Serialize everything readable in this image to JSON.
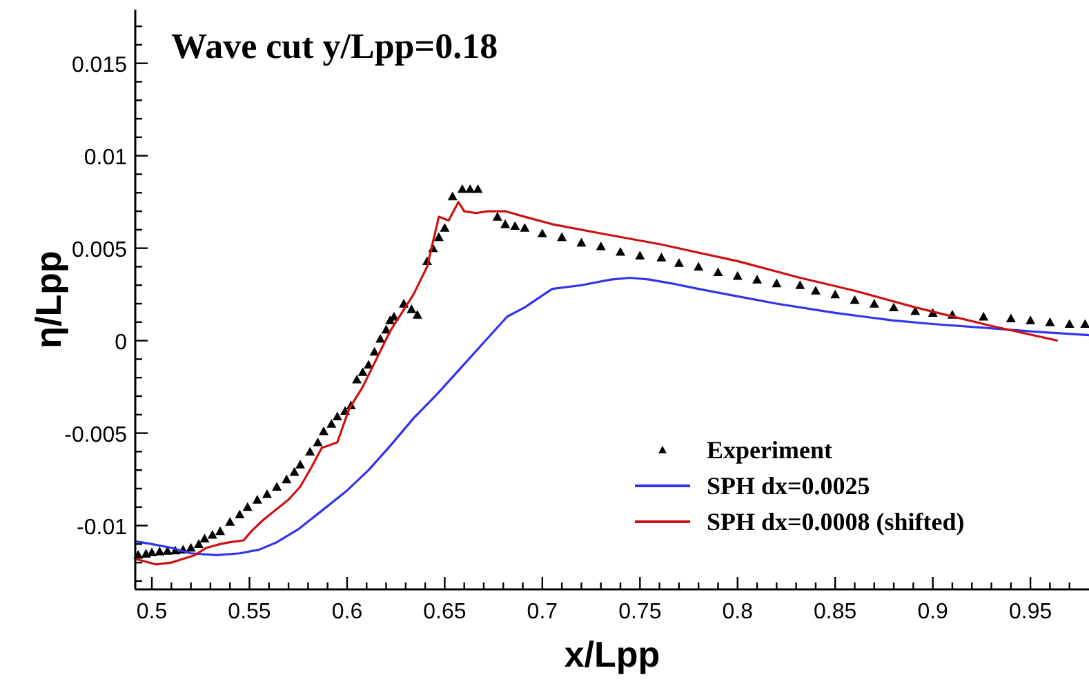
{
  "chart_data": {
    "type": "line",
    "title": "Wave cut y/Lpp=0.18",
    "xlabel": "x/Lpp",
    "ylabel": "η/Lpp",
    "xlim": [
      0.4915,
      0.98
    ],
    "ylim": [
      -0.01345,
      0.0179
    ],
    "xticks": [
      0.5,
      {
        "value": 0.51,
        "label": null
      },
      {
        "value": 0.52,
        "label": null
      },
      {
        "value": 0.53,
        "label": null
      },
      {
        "value": 0.54,
        "label": null
      },
      0.55,
      {
        "value": 0.56,
        "label": null
      },
      {
        "value": 0.57,
        "label": null
      },
      {
        "value": 0.58,
        "label": null
      },
      {
        "value": 0.59,
        "label": null
      },
      0.6,
      {
        "value": 0.61,
        "label": null
      },
      {
        "value": 0.62,
        "label": null
      },
      {
        "value": 0.63,
        "label": null
      },
      {
        "value": 0.64,
        "label": null
      },
      0.65,
      {
        "value": 0.66,
        "label": null
      },
      {
        "value": 0.67,
        "label": null
      },
      {
        "value": 0.68,
        "label": null
      },
      {
        "value": 0.69,
        "label": null
      },
      0.7,
      {
        "value": 0.71,
        "label": null
      },
      {
        "value": 0.72,
        "label": null
      },
      {
        "value": 0.73,
        "label": null
      },
      {
        "value": 0.74,
        "label": null
      },
      0.75,
      {
        "value": 0.76,
        "label": null
      },
      {
        "value": 0.77,
        "label": null
      },
      {
        "value": 0.78,
        "label": null
      },
      {
        "value": 0.79,
        "label": null
      },
      0.8,
      {
        "value": 0.81,
        "label": null
      },
      {
        "value": 0.82,
        "label": null
      },
      {
        "value": 0.83,
        "label": null
      },
      {
        "value": 0.84,
        "label": null
      },
      0.85,
      {
        "value": 0.86,
        "label": null
      },
      {
        "value": 0.87,
        "label": null
      },
      {
        "value": 0.88,
        "label": null
      },
      {
        "value": 0.89,
        "label": null
      },
      0.9,
      {
        "value": 0.91,
        "label": null
      },
      {
        "value": 0.92,
        "label": null
      },
      {
        "value": 0.93,
        "label": null
      },
      {
        "value": 0.94,
        "label": null
      },
      0.95,
      {
        "value": 0.96,
        "label": null
      },
      {
        "value": 0.97,
        "label": null
      }
    ],
    "yticks": [
      {
        "value": -0.013,
        "label": null
      },
      {
        "value": -0.012,
        "label": null
      },
      {
        "value": -0.011,
        "label": null
      },
      -0.01,
      {
        "value": -0.009,
        "label": null
      },
      {
        "value": -0.008,
        "label": null
      },
      {
        "value": -0.007,
        "label": null
      },
      {
        "value": -0.006,
        "label": null
      },
      -0.005,
      {
        "value": -0.004,
        "label": null
      },
      {
        "value": -0.003,
        "label": null
      },
      {
        "value": -0.002,
        "label": null
      },
      {
        "value": -0.001,
        "label": null
      },
      0,
      {
        "value": 0.001,
        "label": null
      },
      {
        "value": 0.002,
        "label": null
      },
      {
        "value": 0.003,
        "label": null
      },
      {
        "value": 0.004,
        "label": null
      },
      0.005,
      {
        "value": 0.006,
        "label": null
      },
      {
        "value": 0.007,
        "label": null
      },
      {
        "value": 0.008,
        "label": null
      },
      {
        "value": 0.009,
        "label": null
      },
      0.01,
      {
        "value": 0.011,
        "label": null
      },
      {
        "value": 0.012,
        "label": null
      },
      {
        "value": 0.013,
        "label": null
      },
      {
        "value": 0.014,
        "label": null
      },
      0.015,
      {
        "value": 0.016,
        "label": null
      },
      {
        "value": 0.017,
        "label": null
      }
    ],
    "grid": false,
    "legend": "bottom right",
    "series": [
      {
        "name": "Experiment",
        "type": "scatter",
        "marker": "triangle",
        "color": "#000000",
        "x": [
          0.493,
          0.497,
          0.5,
          0.504,
          0.508,
          0.512,
          0.516,
          0.52,
          0.524,
          0.527,
          0.531,
          0.535,
          0.54,
          0.545,
          0.549,
          0.554,
          0.559,
          0.564,
          0.569,
          0.573,
          0.576,
          0.581,
          0.585,
          0.588,
          0.592,
          0.595,
          0.599,
          0.602,
          0.605,
          0.608,
          0.611,
          0.614,
          0.617,
          0.62,
          0.622,
          0.624,
          0.629,
          0.633,
          0.636,
          0.641,
          0.644,
          0.647,
          0.65,
          0.654,
          0.659,
          0.663,
          0.667,
          0.677,
          0.681,
          0.686,
          0.691,
          0.7,
          0.71,
          0.72,
          0.73,
          0.74,
          0.75,
          0.761,
          0.77,
          0.78,
          0.79,
          0.8,
          0.81,
          0.82,
          0.832,
          0.84,
          0.85,
          0.86,
          0.87,
          0.88,
          0.891,
          0.9,
          0.91,
          0.926,
          0.94,
          0.95,
          0.96,
          0.97,
          0.978
        ],
        "values": [
          -0.01158,
          -0.01152,
          -0.01145,
          -0.0114,
          -0.01137,
          -0.01135,
          -0.0113,
          -0.0112,
          -0.011,
          -0.0107,
          -0.0105,
          -0.0103,
          -0.0098,
          -0.0094,
          -0.009,
          -0.0086,
          -0.0083,
          -0.0079,
          -0.0075,
          -0.0071,
          -0.0067,
          -0.006,
          -0.0055,
          -0.0049,
          -0.0045,
          -0.0041,
          -0.0038,
          -0.0035,
          -0.0021,
          -0.0017,
          -0.0013,
          -0.0006,
          0.0001,
          0.0006,
          0.0011,
          0.0013,
          0.002,
          0.0017,
          0.0014,
          0.0043,
          0.005,
          0.0056,
          0.0061,
          0.0078,
          0.0082,
          0.0082,
          0.0082,
          0.0067,
          0.0063,
          0.0062,
          0.0061,
          0.0058,
          0.0056,
          0.0053,
          0.0051,
          0.0048,
          0.0046,
          0.0045,
          0.0042,
          0.004,
          0.0037,
          0.0035,
          0.0033,
          0.0031,
          0.003,
          0.0027,
          0.0025,
          0.0022,
          0.002,
          0.0018,
          0.0016,
          0.0015,
          0.0014,
          0.0013,
          0.0012,
          0.0011,
          0.001,
          0.0009,
          0.0009
        ]
      },
      {
        "name": "SPH dx=0.0025",
        "marker": "none",
        "color": "#3333ee",
        "x": [
          0.4915,
          0.5,
          0.51,
          0.52,
          0.533,
          0.545,
          0.555,
          0.564,
          0.575,
          0.587,
          0.6,
          0.611,
          0.622,
          0.634,
          0.646,
          0.658,
          0.67,
          0.682,
          0.691,
          0.705,
          0.72,
          0.735,
          0.745,
          0.755,
          0.766,
          0.78,
          0.8,
          0.82,
          0.85,
          0.879,
          0.9,
          0.926,
          0.95,
          0.98
        ],
        "values": [
          -0.01085,
          -0.011,
          -0.0112,
          -0.0115,
          -0.0116,
          -0.0115,
          -0.0113,
          -0.0109,
          -0.0102,
          -0.0092,
          -0.0081,
          -0.007,
          -0.0057,
          -0.0042,
          -0.0029,
          -0.0015,
          -0.0001,
          0.0013,
          0.0018,
          0.0028,
          0.003,
          0.0033,
          0.0034,
          0.0033,
          0.0031,
          0.0028,
          0.0024,
          0.002,
          0.0015,
          0.0011,
          0.0009,
          0.0007,
          0.0005,
          0.0003
        ]
      },
      {
        "name": "SPH dx=0.0008 (shifted)",
        "marker": "none",
        "color": "#cc1111",
        "x": [
          0.4915,
          0.502,
          0.51,
          0.516,
          0.522,
          0.528,
          0.535,
          0.54,
          0.547,
          0.551,
          0.557,
          0.564,
          0.57,
          0.576,
          0.582,
          0.587,
          0.595,
          0.601,
          0.608,
          0.615,
          0.622,
          0.628,
          0.634,
          0.641,
          0.645,
          0.647,
          0.652,
          0.657,
          0.66,
          0.666,
          0.672,
          0.681,
          0.691,
          0.705,
          0.73,
          0.761,
          0.8,
          0.832,
          0.86,
          0.891,
          0.93,
          0.964
        ],
        "values": [
          -0.0118,
          -0.0121,
          -0.012,
          -0.0118,
          -0.0116,
          -0.0112,
          -0.011,
          -0.0109,
          -0.0108,
          -0.0103,
          -0.0097,
          -0.0091,
          -0.0086,
          -0.0079,
          -0.0068,
          -0.0058,
          -0.0055,
          -0.0037,
          -0.0025,
          -0.001,
          0.0005,
          0.0015,
          0.0025,
          0.004,
          0.0058,
          0.0067,
          0.0065,
          0.0075,
          0.007,
          0.0069,
          0.007,
          0.007,
          0.0067,
          0.0063,
          0.0058,
          0.0052,
          0.0043,
          0.0034,
          0.0027,
          0.0018,
          0.0008,
          0.0
        ]
      }
    ]
  }
}
